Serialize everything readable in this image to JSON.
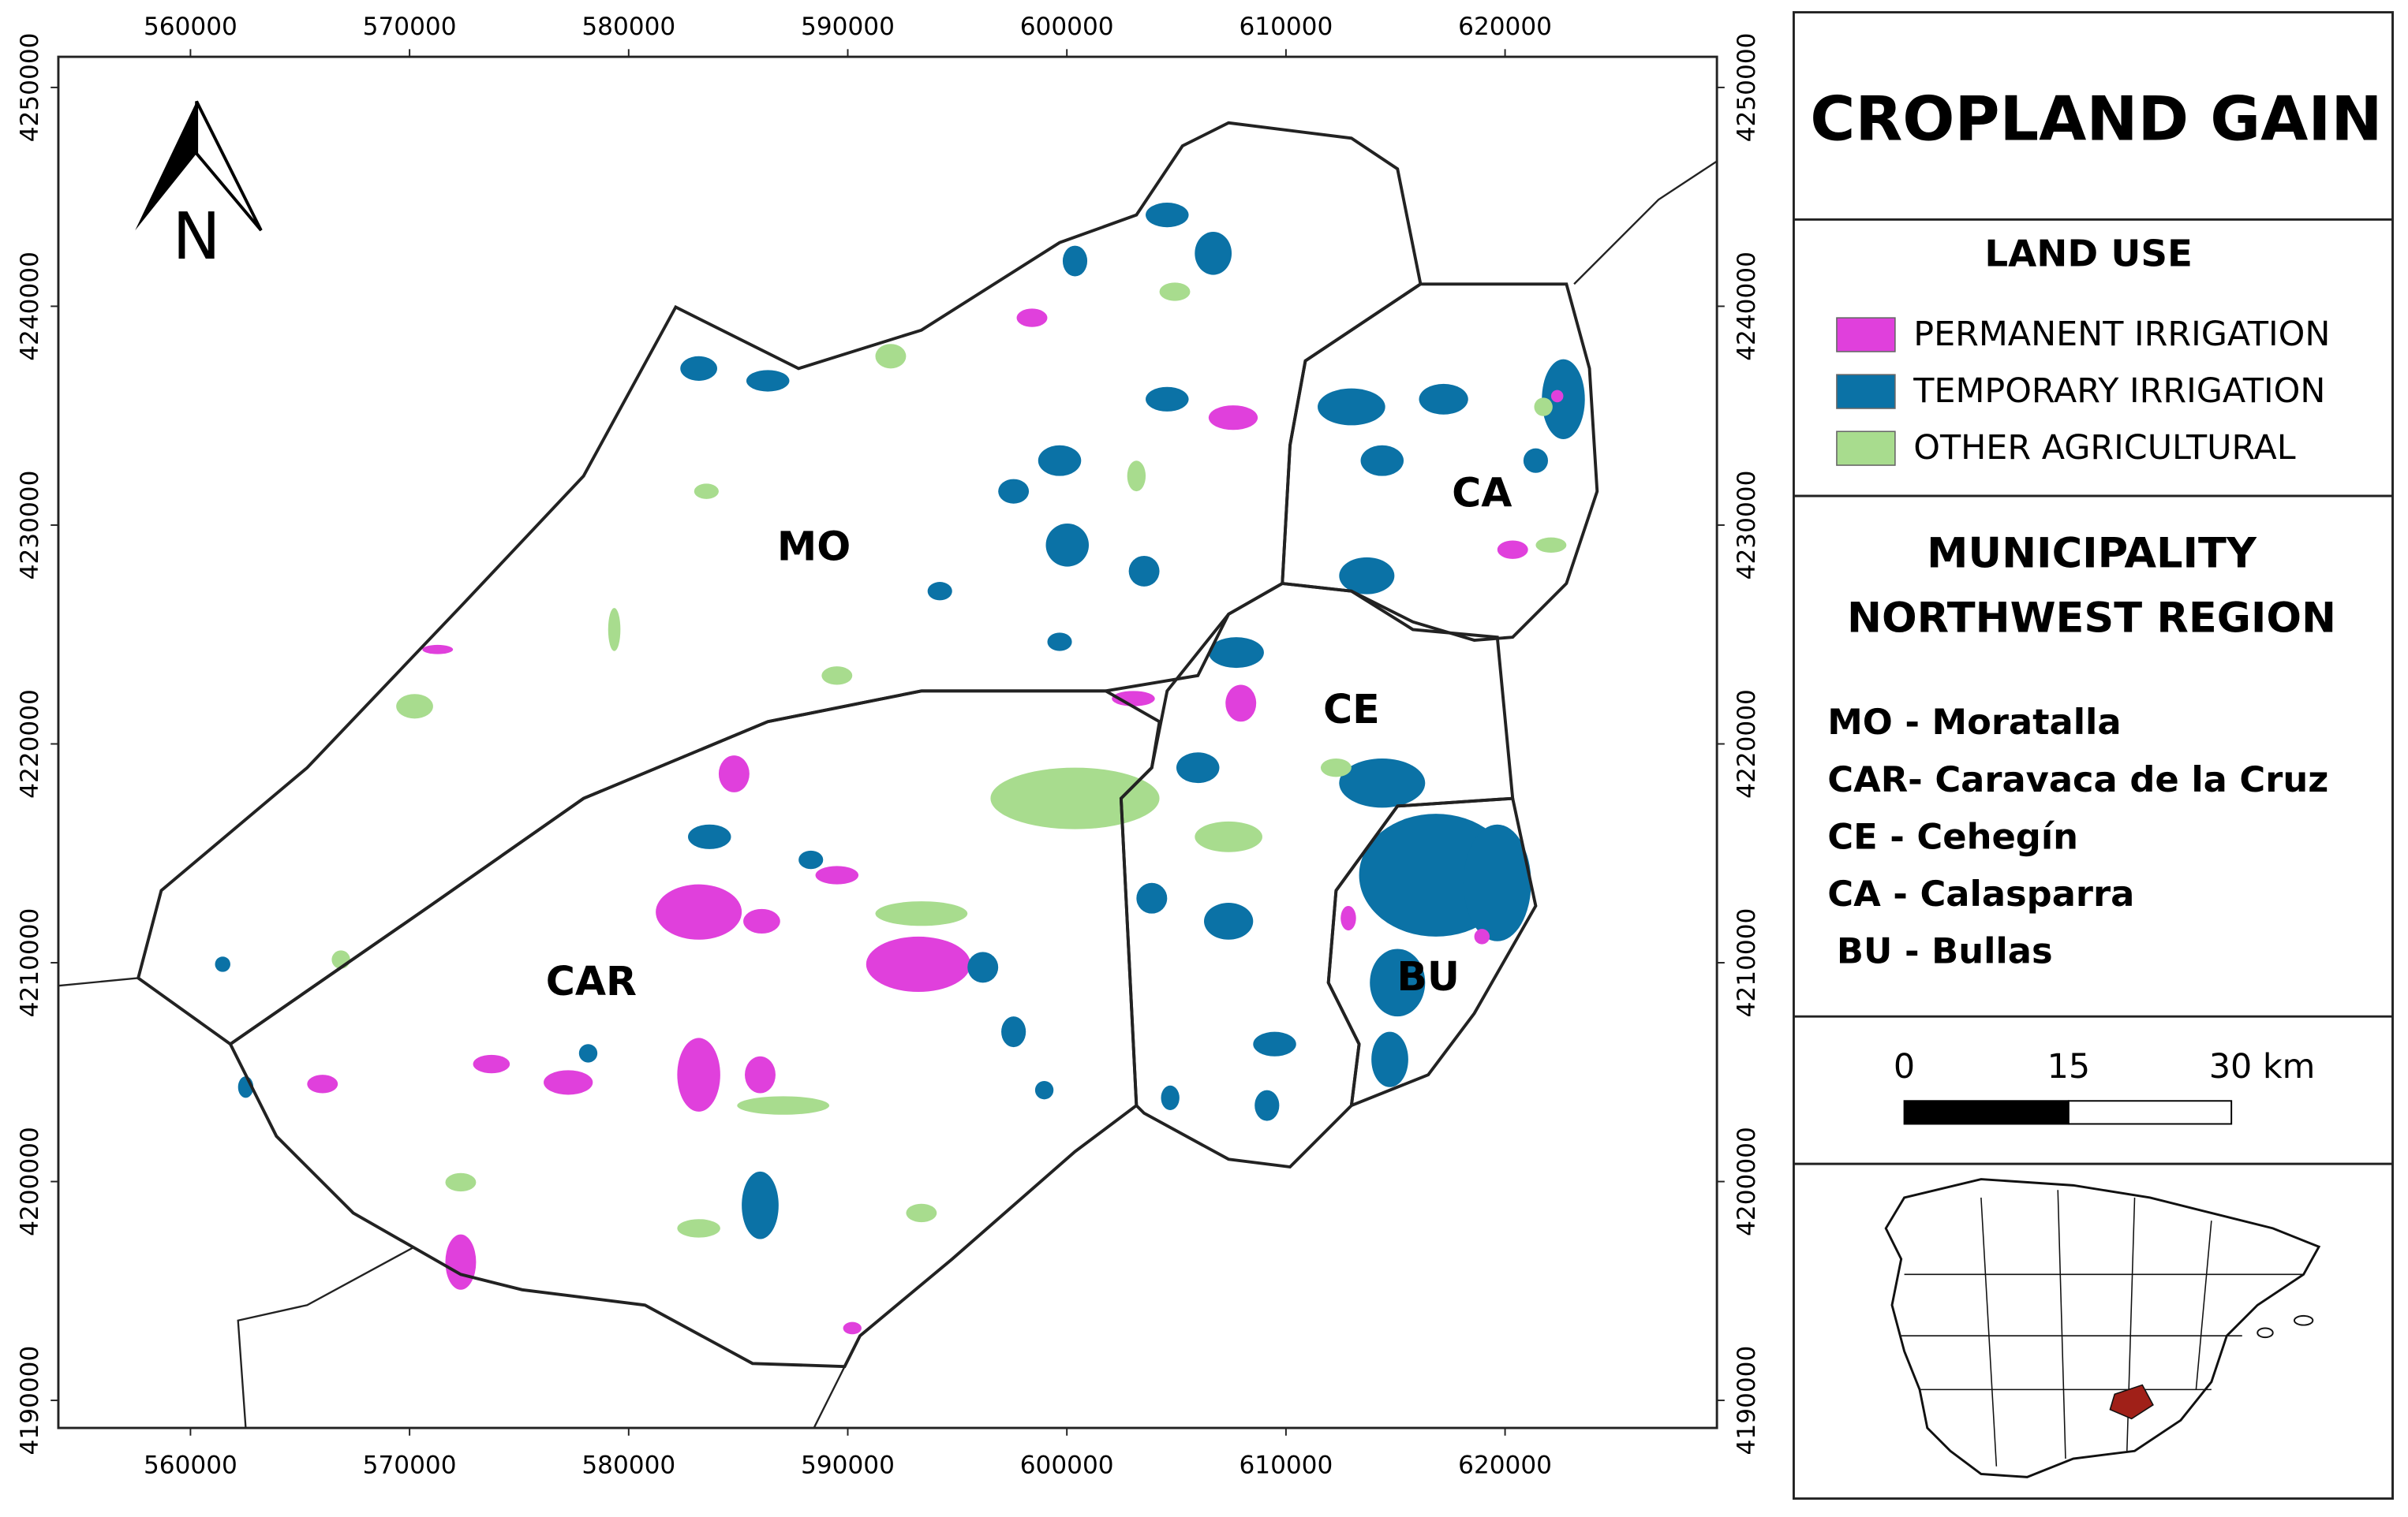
{
  "title": "CROPLAND GAIN",
  "legend": {
    "title": "LAND USE",
    "items": [
      {
        "label": "PERMANENT IRRIGATION",
        "color": "#e040dc"
      },
      {
        "label": "TEMPORARY IRRIGATION",
        "color": "#0b72a6"
      },
      {
        "label": "OTHER AGRICULTURAL",
        "color": "#a8dc8e"
      }
    ]
  },
  "municipality": {
    "title_lines": [
      "MUNICIPALITY",
      "NORTHWEST REGION"
    ],
    "items": [
      "MO - Moratalla",
      "CAR- Caravaca de la Cruz",
      "CE - Cehegín",
      "CA - Calasparra",
      "BU - Bullas"
    ]
  },
  "scale_bar": {
    "labels": [
      "0",
      "15",
      "30 km"
    ]
  },
  "map": {
    "north": "N",
    "labels": [
      "MO",
      "CAR",
      "CE",
      "CA",
      "BU"
    ],
    "xlim": [
      553970,
      629670
    ],
    "ylim": [
      4188740,
      4251400
    ],
    "xticks": [
      560000,
      570000,
      580000,
      590000,
      600000,
      610000,
      620000
    ],
    "yticks": [
      4190000,
      4200000,
      4210000,
      4220000,
      4230000,
      4240000,
      4250000
    ]
  }
}
